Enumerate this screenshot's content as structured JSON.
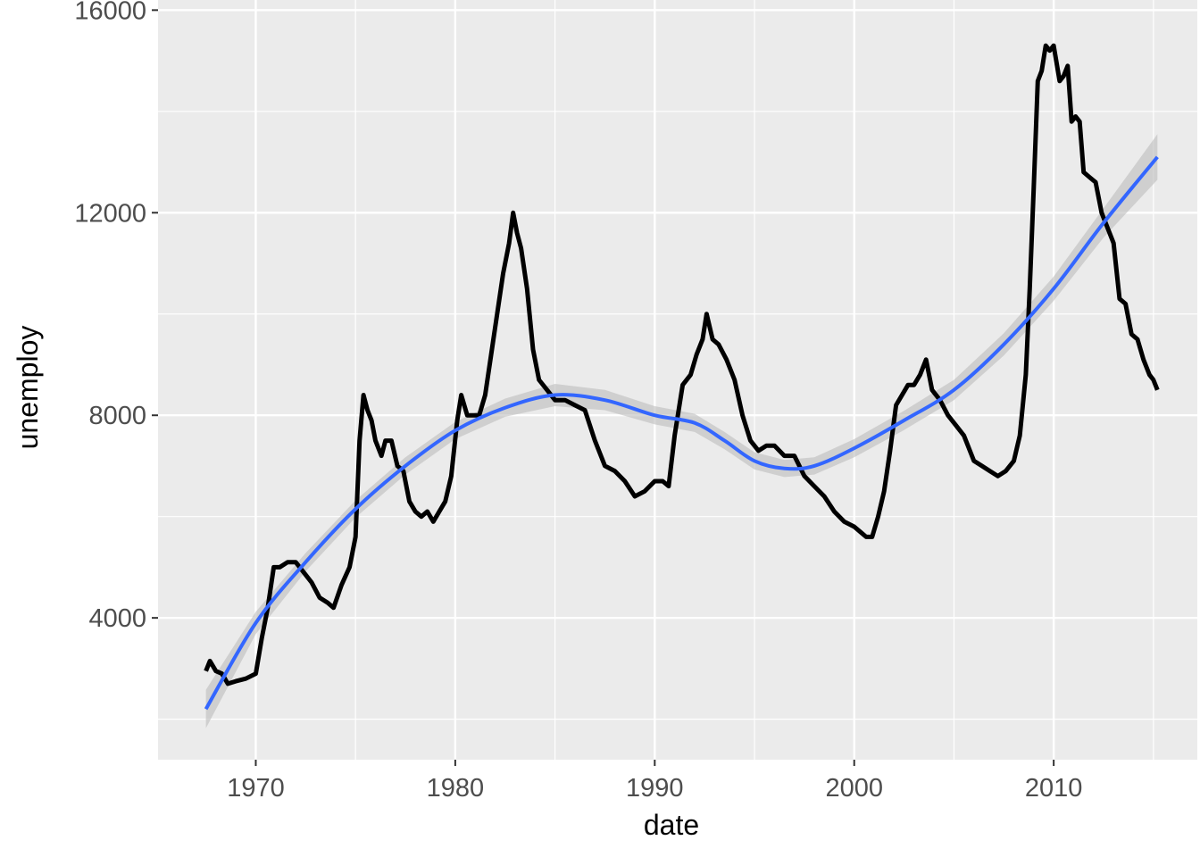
{
  "chart_data": {
    "type": "line",
    "title": "",
    "xlabel": "date",
    "ylabel": "unemploy",
    "xlim": [
      1965.1,
      2017.2
    ],
    "ylim": [
      1200,
      16200
    ],
    "x_ticks": [
      1970,
      1980,
      1990,
      2000,
      2010
    ],
    "x_tick_labels": [
      "1970",
      "1980",
      "1990",
      "2000",
      "2010"
    ],
    "x_minor_ticks": [
      1975,
      1985,
      1995,
      2005,
      2015
    ],
    "y_ticks": [
      4000,
      8000,
      12000,
      16000
    ],
    "y_tick_labels": [
      "4000",
      "8000",
      "12000",
      "16000"
    ],
    "y_minor_ticks": [
      2000,
      6000,
      10000,
      14000
    ],
    "grid": true,
    "background": "#ebebeb",
    "colors": {
      "line": "#000000",
      "smooth": "#3366ff",
      "ribbon": "#bdbdbd"
    },
    "series": [
      {
        "name": "unemploy",
        "kind": "line",
        "x": [
          1967.5,
          1967.7,
          1968.0,
          1968.3,
          1968.6,
          1969.0,
          1969.5,
          1970.0,
          1970.3,
          1970.6,
          1970.9,
          1971.2,
          1971.6,
          1972.0,
          1972.4,
          1972.8,
          1973.2,
          1973.6,
          1973.9,
          1974.3,
          1974.7,
          1975.0,
          1975.2,
          1975.4,
          1975.6,
          1975.8,
          1976.0,
          1976.3,
          1976.5,
          1976.8,
          1977.1,
          1977.4,
          1977.7,
          1978.0,
          1978.3,
          1978.6,
          1978.9,
          1979.2,
          1979.5,
          1979.8,
          1980.1,
          1980.3,
          1980.6,
          1980.9,
          1981.2,
          1981.5,
          1981.8,
          1982.1,
          1982.4,
          1982.7,
          1982.9,
          1983.1,
          1983.3,
          1983.6,
          1983.9,
          1984.2,
          1984.6,
          1985.0,
          1985.5,
          1986.0,
          1986.5,
          1987.0,
          1987.5,
          1988.0,
          1988.5,
          1989.0,
          1989.5,
          1990.0,
          1990.4,
          1990.7,
          1991.0,
          1991.4,
          1991.8,
          1992.1,
          1992.4,
          1992.6,
          1992.9,
          1993.2,
          1993.6,
          1994.0,
          1994.4,
          1994.8,
          1995.2,
          1995.6,
          1996.0,
          1996.5,
          1997.0,
          1997.5,
          1998.0,
          1998.5,
          1999.0,
          1999.5,
          2000.0,
          2000.3,
          2000.6,
          2000.9,
          2001.2,
          2001.5,
          2001.8,
          2002.1,
          2002.4,
          2002.7,
          2003.0,
          2003.3,
          2003.6,
          2003.9,
          2004.3,
          2004.7,
          2005.1,
          2005.5,
          2006.0,
          2006.4,
          2006.8,
          2007.2,
          2007.6,
          2008.0,
          2008.3,
          2008.6,
          2008.8,
          2009.0,
          2009.2,
          2009.4,
          2009.6,
          2009.8,
          2010.0,
          2010.3,
          2010.5,
          2010.7,
          2010.9,
          2011.1,
          2011.3,
          2011.5,
          2011.8,
          2012.1,
          2012.4,
          2012.7,
          2013.0,
          2013.3,
          2013.6,
          2013.9,
          2014.2,
          2014.5,
          2014.8,
          2015.0,
          2015.2
        ],
        "y": [
          2950,
          3150,
          2950,
          2900,
          2700,
          2750,
          2800,
          2900,
          3600,
          4200,
          5000,
          5000,
          5100,
          5100,
          4900,
          4700,
          4400,
          4300,
          4200,
          4650,
          5000,
          5600,
          7500,
          8400,
          8100,
          7900,
          7500,
          7200,
          7500,
          7500,
          7000,
          6900,
          6300,
          6100,
          6000,
          6100,
          5900,
          6100,
          6300,
          6800,
          7900,
          8400,
          8000,
          8000,
          8000,
          8400,
          9200,
          10000,
          10800,
          11400,
          12000,
          11600,
          11300,
          10500,
          9300,
          8700,
          8500,
          8300,
          8300,
          8200,
          8100,
          7500,
          7000,
          6900,
          6700,
          6400,
          6500,
          6700,
          6700,
          6600,
          7600,
          8600,
          8800,
          9200,
          9500,
          10000,
          9500,
          9400,
          9100,
          8700,
          8000,
          7500,
          7300,
          7400,
          7400,
          7200,
          7200,
          6800,
          6600,
          6400,
          6100,
          5900,
          5800,
          5700,
          5600,
          5600,
          6000,
          6500,
          7300,
          8200,
          8400,
          8600,
          8600,
          8800,
          9100,
          8500,
          8300,
          8000,
          7800,
          7600,
          7100,
          7000,
          6900,
          6800,
          6900,
          7100,
          7600,
          8800,
          10500,
          12500,
          14600,
          14800,
          15300,
          15200,
          15300,
          14600,
          14700,
          14900,
          13800,
          13900,
          13800,
          12800,
          12700,
          12600,
          12000,
          11700,
          11400,
          10300,
          10200,
          9600,
          9500,
          9100,
          8800,
          8700,
          8500
        ]
      },
      {
        "name": "loess",
        "kind": "smooth",
        "x": [
          1967.5,
          1970,
          1972.5,
          1975,
          1977.5,
          1980,
          1982.5,
          1985,
          1987.5,
          1990,
          1992,
          1993.5,
          1995,
          1996.5,
          1998,
          2000,
          2002.5,
          2005,
          2007.5,
          2010,
          2012.5,
          2015.2
        ],
        "y": [
          2200,
          3900,
          5100,
          6150,
          7000,
          7700,
          8150,
          8400,
          8300,
          8000,
          7850,
          7500,
          7100,
          6950,
          7000,
          7350,
          7900,
          8500,
          9400,
          10500,
          11800,
          13100
        ],
        "ribbon_half_width": [
          380,
          220,
          180,
          170,
          170,
          170,
          180,
          220,
          200,
          180,
          180,
          170,
          170,
          170,
          170,
          180,
          190,
          200,
          220,
          240,
          290,
          450
        ]
      }
    ]
  }
}
